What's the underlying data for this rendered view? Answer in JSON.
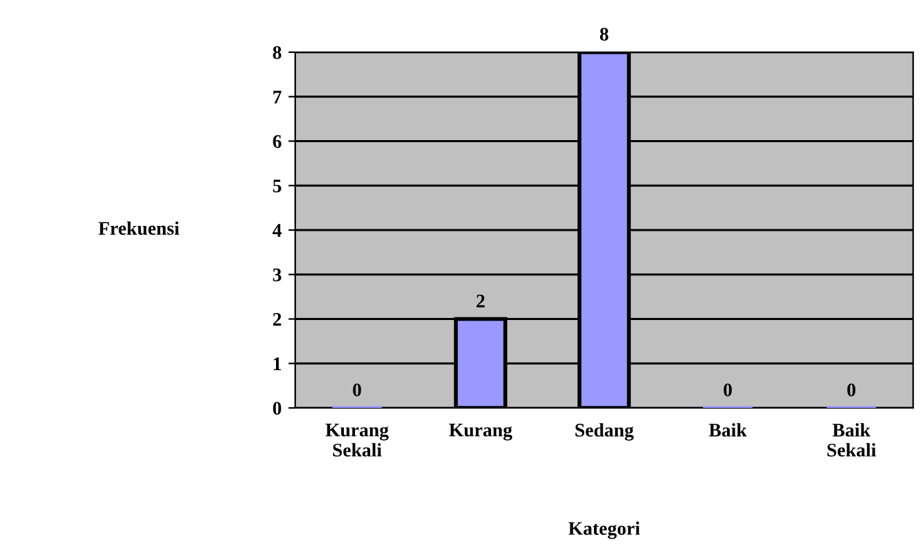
{
  "chart_data": {
    "type": "bar",
    "xlabel": "Kategori",
    "ylabel": "Frekuensi",
    "categories": [
      "Kurang Sekali",
      "Kurang",
      "Sedang",
      "Baik",
      "Baik Sekali"
    ],
    "values": [
      0,
      2,
      8,
      0,
      0
    ],
    "color": "#9999ff",
    "ylim": [
      0,
      8
    ],
    "yticks": [
      0,
      1,
      2,
      3,
      4,
      5,
      6,
      7,
      8
    ],
    "grid": "y",
    "data_labels": true
  }
}
